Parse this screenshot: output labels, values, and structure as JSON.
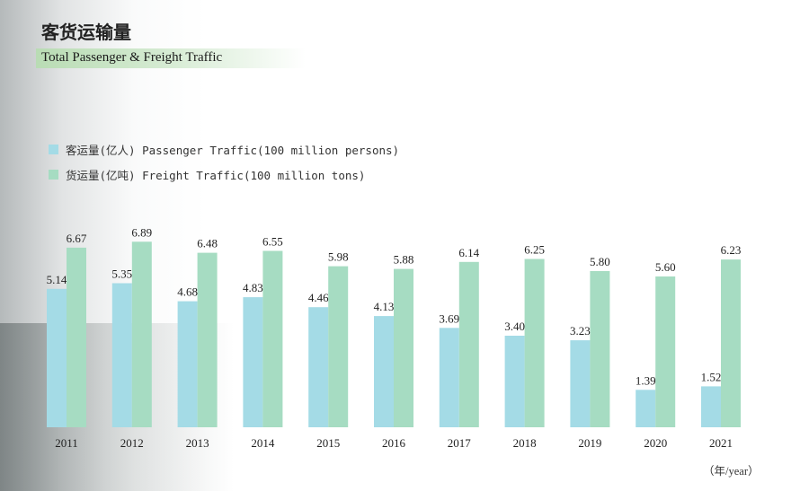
{
  "title_cn": "客货运输量",
  "title_en": "Total Passenger & Freight Traffic",
  "year_unit": "（年/year）",
  "colors": {
    "passenger": "#a4dbe6",
    "freight": "#a6dcc2",
    "band": "#c6e4c2"
  },
  "chart_data": {
    "type": "bar",
    "categories": [
      "2011",
      "2012",
      "2013",
      "2014",
      "2015",
      "2016",
      "2017",
      "2018",
      "2019",
      "2020",
      "2021"
    ],
    "series": [
      {
        "name": "客运量(亿人) Passenger Traffic(100 million persons)",
        "values": [
          5.14,
          5.35,
          4.68,
          4.83,
          4.46,
          4.13,
          3.69,
          3.4,
          3.23,
          1.39,
          1.52
        ]
      },
      {
        "name": "货运量(亿吨) Freight Traffic(100 million tons)",
        "values": [
          6.67,
          6.89,
          6.48,
          6.55,
          5.98,
          5.88,
          6.14,
          6.25,
          5.8,
          5.6,
          6.23
        ]
      }
    ],
    "ylim": [
      0,
      7.5
    ],
    "legend": "top-left",
    "grid": false
  }
}
